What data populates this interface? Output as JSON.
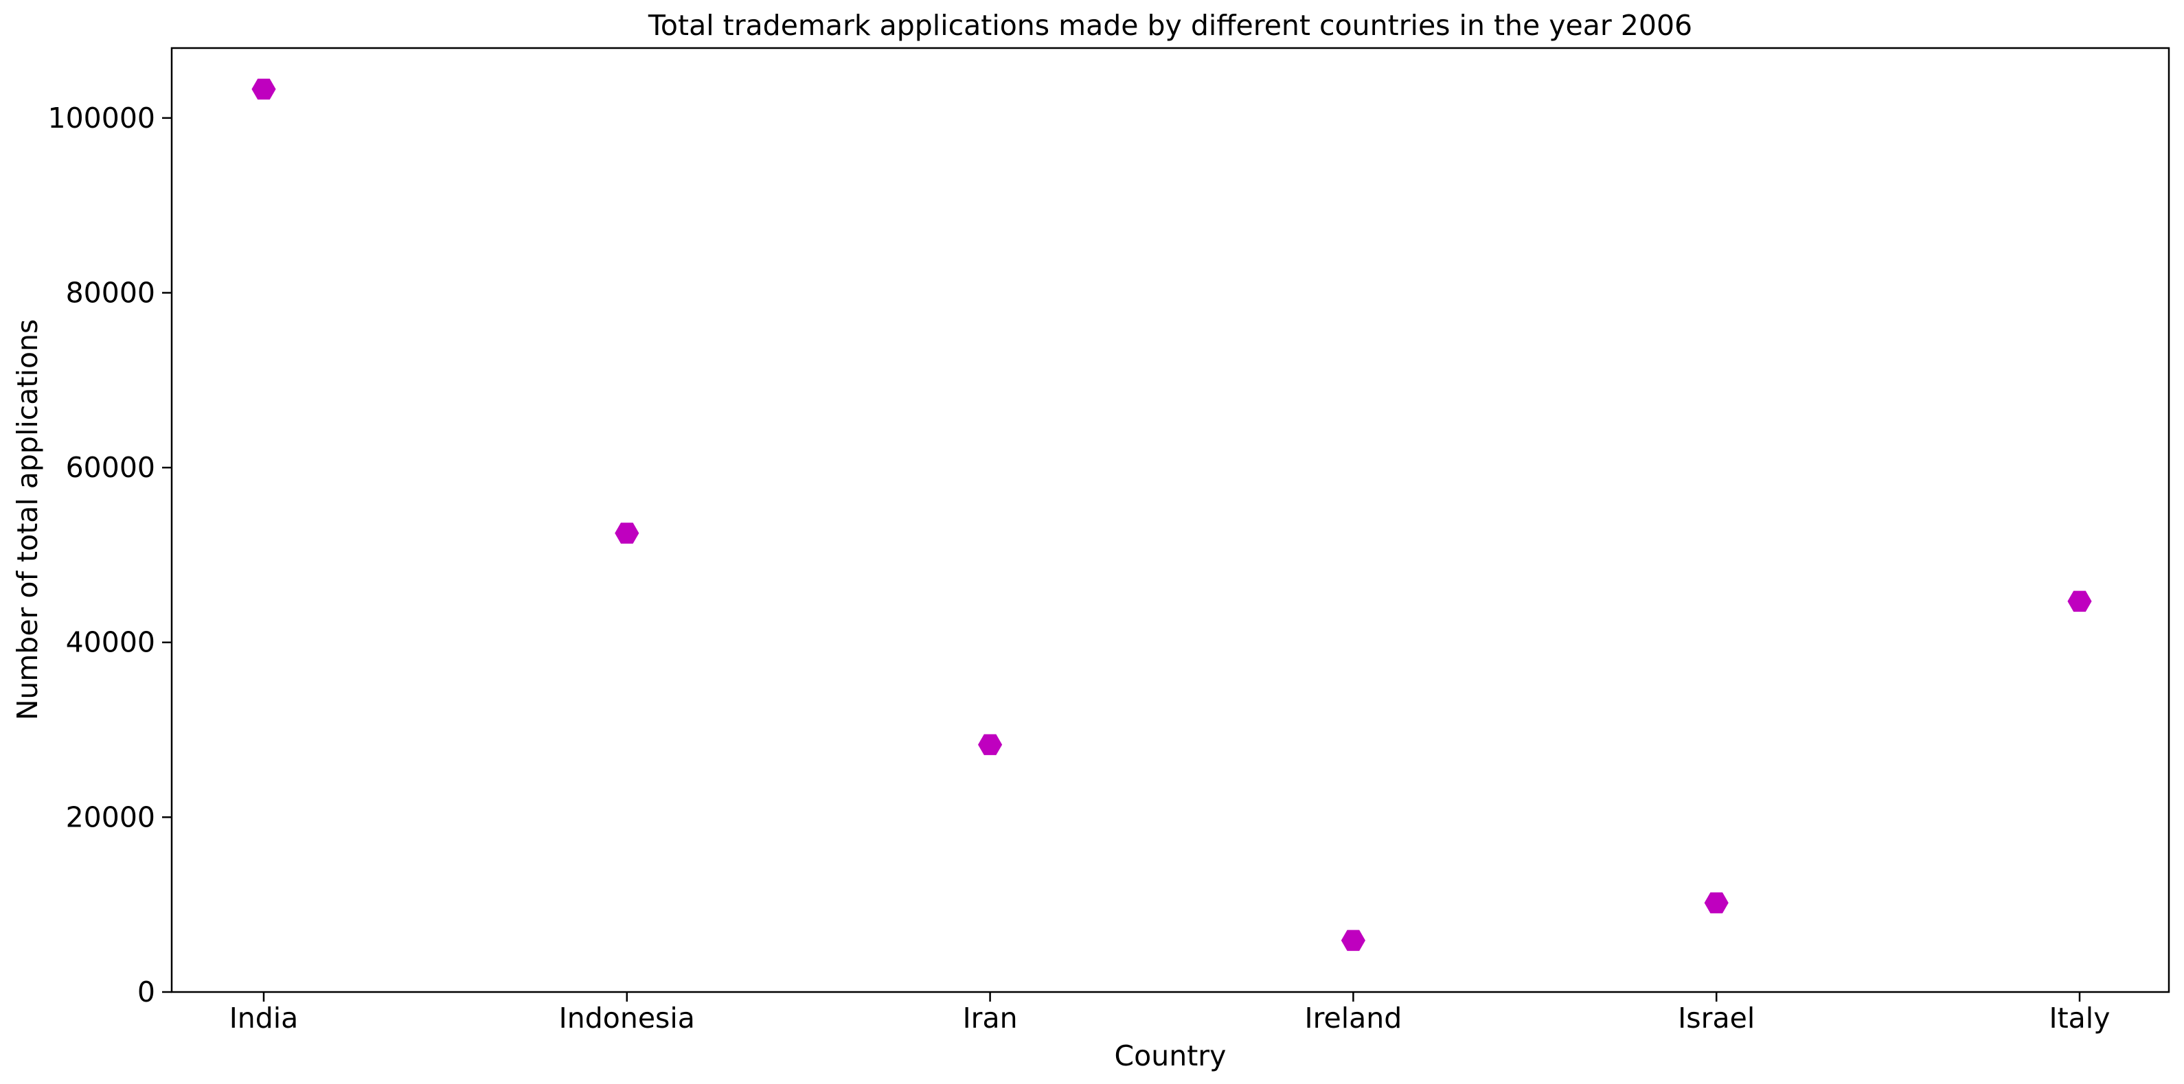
{
  "chart_data": {
    "type": "scatter",
    "title": "Total trademark applications made by different countries in the year 2006",
    "xlabel": "Country",
    "ylabel": "Number of total applications",
    "categories": [
      "India",
      "Indonesia",
      "Iran",
      "Ireland",
      "Israel",
      "Italy"
    ],
    "series": [
      {
        "values": [
          103300,
          52500,
          28300,
          5900,
          10200,
          44700
        ],
        "color": "#bf00bf",
        "marker": "hexagon"
      }
    ],
    "ylim": [
      0,
      108000
    ],
    "yticks": [
      0,
      20000,
      40000,
      60000,
      80000,
      100000
    ],
    "ytick_labels": [
      "0",
      "20000",
      "40000",
      "60000",
      "80000",
      "100000"
    ],
    "grid": false,
    "legend": "none"
  }
}
